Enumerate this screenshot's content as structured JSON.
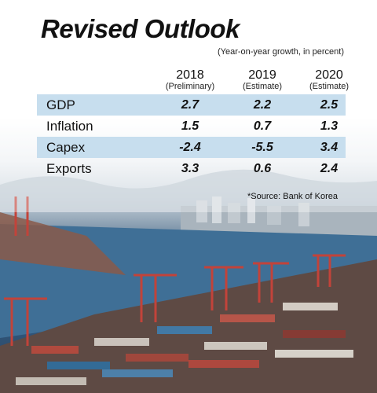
{
  "title": "Revised Outlook",
  "subtitle": "(Year-on-year growth, in percent)",
  "source": "*Source: Bank of Korea",
  "colors": {
    "row_shade": "#c7deee",
    "text": "#111111"
  },
  "chart_data": {
    "type": "table",
    "columns": [
      {
        "year": "2018",
        "note": "(Preliminary)"
      },
      {
        "year": "2019",
        "note": "(Estimate)"
      },
      {
        "year": "2020",
        "note": "(Estimate)"
      }
    ],
    "rows": [
      {
        "label": "GDP",
        "values": [
          "2.7",
          "2.2",
          "2.5"
        ],
        "shaded": true
      },
      {
        "label": "Inflation",
        "values": [
          "1.5",
          "0.7",
          "1.3"
        ],
        "shaded": false
      },
      {
        "label": "Capex",
        "values": [
          "-2.4",
          "-5.5",
          "3.4"
        ],
        "shaded": true
      },
      {
        "label": "Exports",
        "values": [
          "3.3",
          "0.6",
          "2.4"
        ],
        "shaded": false
      }
    ]
  }
}
